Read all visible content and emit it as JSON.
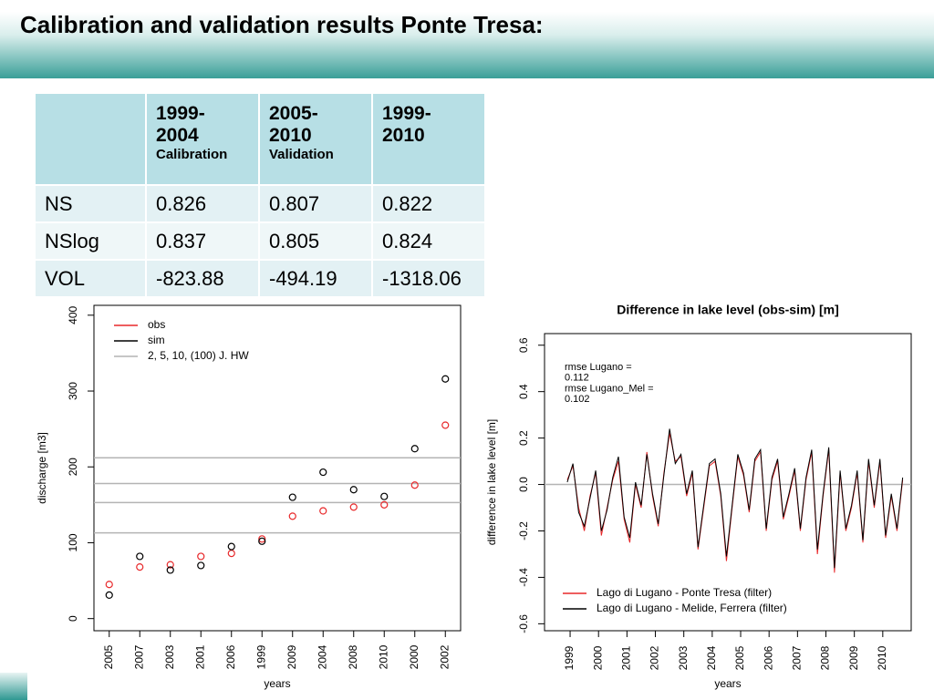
{
  "header": {
    "title": "Calibration and validation results Ponte Tresa:"
  },
  "table": {
    "columns": [
      {
        "years": "1999-2004",
        "note": "Calibration"
      },
      {
        "years": "2005-2010",
        "note": "Validation"
      },
      {
        "years": "1999-2010"
      }
    ],
    "rows": [
      [
        "NS",
        0.826,
        0.807,
        0.822
      ],
      [
        "NSlog",
        0.837,
        0.805,
        0.824
      ],
      [
        "VOL",
        -823.88,
        -494.19,
        -1318.06
      ]
    ]
  },
  "chart_data": [
    {
      "type": "scatter",
      "xlabel": "years",
      "ylabel": "discharge [m3]",
      "categories": [
        "2005",
        "2007",
        "2003",
        "2001",
        "2006",
        "1999",
        "2009",
        "2004",
        "2008",
        "2010",
        "2000",
        "2002"
      ],
      "series": [
        {
          "name": "obs",
          "color": "#e8282a",
          "values": [
            45,
            68,
            71,
            82,
            86,
            105,
            135,
            142,
            147,
            150,
            176,
            255
          ]
        },
        {
          "name": "sim",
          "color": "#000000",
          "values": [
            31,
            82,
            64,
            70,
            95,
            102,
            160,
            193,
            170,
            161,
            224,
            316
          ]
        }
      ],
      "reference_lines": {
        "name": "2, 5, 10, (100) J. HW",
        "color": "#b4b4b4",
        "values": [
          113,
          153,
          178,
          212
        ]
      },
      "ylim": [
        -16,
        413
      ],
      "yticks": [
        0,
        100,
        200,
        300,
        400
      ]
    },
    {
      "type": "line",
      "title": "Difference in lake level (obs-sim) [m]",
      "xlabel": "years",
      "ylabel": "difference in lake level [m]",
      "annotation": [
        "rmse Lugano =",
        "0.112",
        "rmse Lugano_Mel =",
        "0.102"
      ],
      "x": [
        1998.9,
        1999.1,
        1999.3,
        1999.5,
        1999.7,
        1999.9,
        2000.1,
        2000.3,
        2000.5,
        2000.7,
        2000.9,
        2001.1,
        2001.3,
        2001.5,
        2001.7,
        2001.9,
        2002.1,
        2002.3,
        2002.5,
        2002.7,
        2002.9,
        2003.1,
        2003.3,
        2003.5,
        2003.7,
        2003.9,
        2004.1,
        2004.3,
        2004.5,
        2004.7,
        2004.9,
        2005.1,
        2005.3,
        2005.5,
        2005.7,
        2005.9,
        2006.1,
        2006.3,
        2006.5,
        2006.7,
        2006.9,
        2007.1,
        2007.3,
        2007.5,
        2007.7,
        2007.9,
        2008.1,
        2008.3,
        2008.5,
        2008.7,
        2008.9,
        2009.1,
        2009.3,
        2009.5,
        2009.7,
        2009.9,
        2010.1,
        2010.3,
        2010.5,
        2010.7
      ],
      "series": [
        {
          "name": "Lago di Lugano - Ponte Tresa (filter)",
          "color": "#e8282a",
          "values": [
            0.02,
            0.08,
            -0.1,
            -0.2,
            -0.05,
            0.05,
            -0.22,
            -0.1,
            0.02,
            0.1,
            -0.15,
            -0.25,
            0,
            -0.1,
            0.14,
            -0.05,
            -0.18,
            0.05,
            0.22,
            0.1,
            0.12,
            -0.05,
            0.05,
            -0.28,
            -0.1,
            0.08,
            0.1,
            -0.05,
            -0.33,
            -0.1,
            0.12,
            0.04,
            -0.12,
            0.1,
            0.14,
            -0.2,
            0.02,
            0.1,
            -0.15,
            -0.05,
            0.06,
            -0.2,
            0.02,
            0.14,
            -0.3,
            -0.05,
            0.15,
            -0.38,
            0.05,
            -0.2,
            -0.1,
            0.05,
            -0.25,
            0.1,
            -0.1,
            0.1,
            -0.23,
            -0.05,
            -0.2,
            0.02
          ]
        },
        {
          "name": "Lago di Lugano - Melide, Ferrera (filter)",
          "color": "#000000",
          "values": [
            0.01,
            0.09,
            -0.12,
            -0.18,
            -0.06,
            0.06,
            -0.2,
            -0.11,
            0.03,
            0.12,
            -0.14,
            -0.23,
            0.01,
            -0.09,
            0.13,
            -0.04,
            -0.17,
            0.04,
            0.24,
            0.09,
            0.13,
            -0.04,
            0.06,
            -0.27,
            -0.09,
            0.09,
            0.11,
            -0.04,
            -0.31,
            -0.09,
            0.13,
            0.05,
            -0.11,
            0.11,
            0.15,
            -0.19,
            0.03,
            0.11,
            -0.14,
            -0.04,
            0.07,
            -0.19,
            0.03,
            0.15,
            -0.28,
            -0.04,
            0.16,
            -0.36,
            0.06,
            -0.19,
            -0.09,
            0.06,
            -0.24,
            0.11,
            -0.09,
            0.11,
            -0.22,
            -0.04,
            -0.19,
            0.03
          ]
        }
      ],
      "reference_lines": {
        "color": "#b4b4b4",
        "values": [
          0
        ]
      },
      "xlim": [
        1998.1,
        2011.0
      ],
      "xticks": [
        1999,
        2000,
        2001,
        2002,
        2003,
        2004,
        2005,
        2006,
        2007,
        2008,
        2009,
        2010
      ],
      "ylim": [
        -0.63,
        0.65
      ],
      "yticks": [
        -0.6,
        -0.4,
        -0.2,
        {
          "value": 0,
          "label": "0.0"
        },
        0.2,
        0.4,
        0.6
      ]
    }
  ]
}
